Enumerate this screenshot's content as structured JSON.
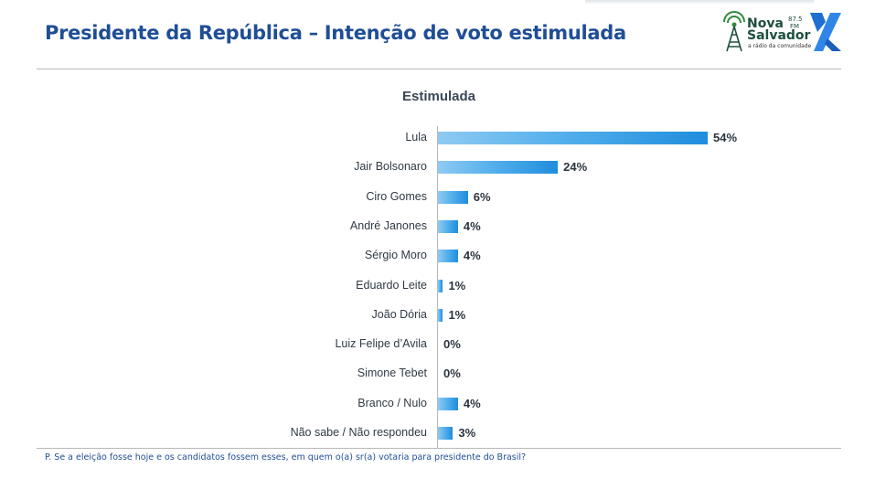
{
  "header": {
    "title": "Presidente da República – Intenção de voto estimulada",
    "logo_nova_line1": "Nova",
    "logo_nova_line2": "Salvador",
    "logo_frequency_top": "87.5",
    "logo_frequency_bottom": "FM",
    "logo_tagline": "a rádio da comunidade",
    "colors": {
      "title": "#1f4e96",
      "logo_green": "#1e4f3d",
      "logo_x_blue": "#1f6fd1"
    }
  },
  "chart_data": {
    "type": "bar",
    "orientation": "horizontal",
    "title": "Estimulada",
    "categories": [
      "Lula",
      "Jair Bolsonaro",
      "Ciro Gomes",
      "André Janones",
      "Sérgio Moro",
      "Eduardo Leite",
      "João Dória",
      "Luiz Felipe d’Avila",
      "Simone Tebet",
      "Branco / Nulo",
      "Não sabe / Não respondeu"
    ],
    "values": [
      54,
      24,
      6,
      4,
      4,
      1,
      1,
      0,
      0,
      4,
      3
    ],
    "value_labels": [
      "54%",
      "24%",
      "6%",
      "4%",
      "4%",
      "1%",
      "1%",
      "0%",
      "0%",
      "4%",
      "3%"
    ],
    "unit": "%",
    "xlim": [
      0,
      54
    ],
    "grid": false,
    "legend": "none",
    "bar_color": "#3ba1e6"
  },
  "footnote": "P. Se a eleição fosse hoje e os candidatos fossem esses, em quem o(a) sr(a) votaria para presidente do Brasil?"
}
